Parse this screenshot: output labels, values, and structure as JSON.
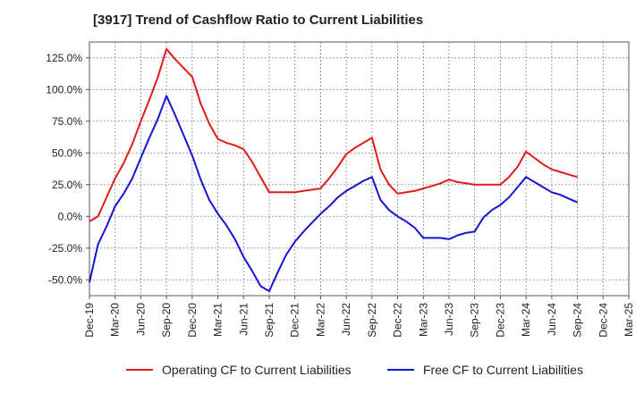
{
  "chart_data": {
    "type": "line",
    "title": "[3917]  Trend of Cashflow Ratio to Current Liabilities",
    "xlabel": "",
    "ylabel": "",
    "ylim": [
      -62.5,
      137.5
    ],
    "xlim": [
      "Dec-19",
      "Mar-25"
    ],
    "grid": true,
    "legend_position": "bottom",
    "x_ticks": [
      "Dec-19",
      "Mar-20",
      "Jun-20",
      "Sep-20",
      "Dec-20",
      "Mar-21",
      "Jun-21",
      "Sep-21",
      "Dec-21",
      "Mar-22",
      "Jun-22",
      "Sep-22",
      "Dec-22",
      "Mar-23",
      "Jun-23",
      "Sep-23",
      "Dec-23",
      "Mar-24",
      "Jun-24",
      "Sep-24",
      "Dec-24",
      "Mar-25"
    ],
    "y_ticks": [
      "125.0%",
      "100.0%",
      "75.0%",
      "50.0%",
      "25.0%",
      "0.0%",
      "-25.0%",
      "-50.0%"
    ],
    "x": [
      "Dec-19",
      "Jan-20",
      "Feb-20",
      "Mar-20",
      "Apr-20",
      "May-20",
      "Jun-20",
      "Jul-20",
      "Aug-20",
      "Sep-20",
      "Oct-20",
      "Nov-20",
      "Dec-20",
      "Jan-21",
      "Feb-21",
      "Mar-21",
      "Apr-21",
      "May-21",
      "Jun-21",
      "Jul-21",
      "Aug-21",
      "Sep-21",
      "Oct-21",
      "Nov-21",
      "Dec-21",
      "Jan-22",
      "Feb-22",
      "Mar-22",
      "Apr-22",
      "May-22",
      "Jun-22",
      "Jul-22",
      "Aug-22",
      "Sep-22",
      "Oct-22",
      "Nov-22",
      "Dec-22",
      "Jan-23",
      "Feb-23",
      "Mar-23",
      "Apr-23",
      "May-23",
      "Jun-23",
      "Jul-23",
      "Aug-23",
      "Sep-23",
      "Oct-23",
      "Nov-23",
      "Dec-23",
      "Jan-24",
      "Feb-24",
      "Mar-24",
      "Apr-24",
      "May-24",
      "Jun-24",
      "Jul-24",
      "Aug-24",
      "Sep-24"
    ],
    "series": [
      {
        "name": "Operating CF to Current Liabilities",
        "color": "#e31a1c",
        "values": [
          -4,
          0,
          15,
          30,
          42,
          57,
          75,
          92,
          110,
          132,
          124,
          117,
          110,
          89,
          73,
          61,
          58,
          56,
          53,
          43,
          31,
          19,
          19,
          19,
          19,
          20,
          21,
          22,
          30,
          39,
          49,
          54,
          58,
          62,
          37,
          25,
          18,
          19,
          20,
          22,
          24,
          26,
          29,
          27,
          26,
          25,
          25,
          25,
          25,
          31,
          39,
          51,
          46,
          41,
          37,
          35,
          33,
          31
        ]
      },
      {
        "name": "Free CF to Current Liabilities",
        "color": "#1515d0",
        "values": [
          -52,
          -22,
          -8,
          8,
          18,
          30,
          46,
          62,
          77,
          95,
          80,
          64,
          48,
          29,
          13,
          2,
          -7,
          -18,
          -32,
          -43,
          -55,
          -59,
          -44,
          -30,
          -20,
          -12,
          -5,
          2,
          8,
          15,
          20,
          24,
          28,
          31,
          13,
          5,
          0,
          -4,
          -9,
          -17,
          -17,
          -17,
          -18,
          -15,
          -13,
          -12,
          -1,
          5,
          9,
          15,
          23,
          31,
          27,
          23,
          19,
          17,
          14,
          11
        ]
      }
    ]
  }
}
